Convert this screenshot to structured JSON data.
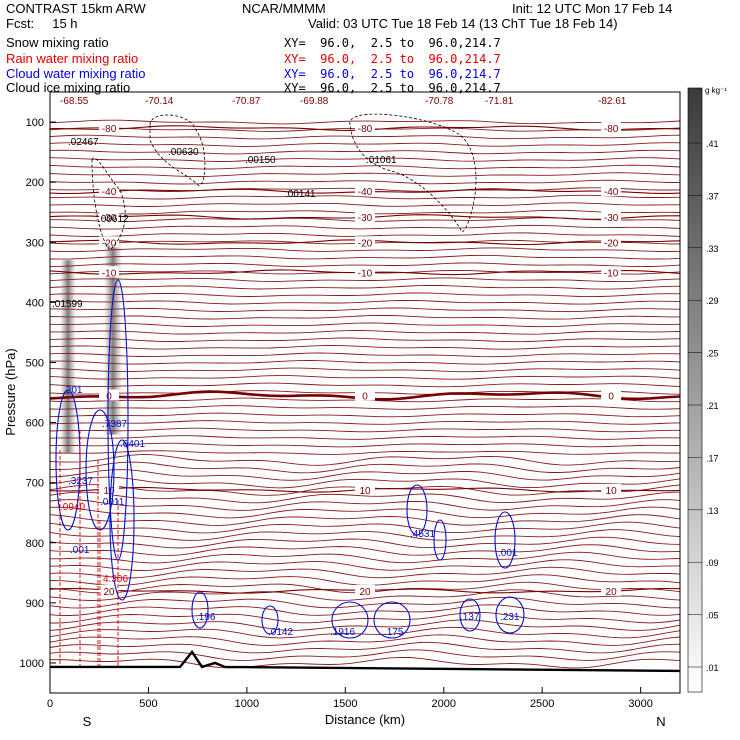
{
  "header": {
    "title": "CONTRAST 15km ARW",
    "forecast": "Fcst:     15 h",
    "center": "NCAR/MMMM",
    "init": "Init: 12 UTC Mon 17 Feb 14",
    "valid": "Valid: 03 UTC Tue 18 Feb 14 (13 ChT Tue 18 Feb 14)",
    "fields": [
      {
        "label": "Snow mixing ratio",
        "xy": "XY=  96.0,  2.5 to  96.0,214.7",
        "color": "#000000"
      },
      {
        "label": "Rain water mixing ratio",
        "xy": "XY=  96.0,  2.5 to  96.0,214.7",
        "color": "#e00000"
      },
      {
        "label": "Cloud water mixing ratio",
        "xy": "XY=  96.0,  2.5 to  96.0,214.7",
        "color": "#0000e0"
      },
      {
        "label": "Cloud ice mixing ratio",
        "xy": "XY=  96.0,  2.5 to  96.0,214.7",
        "color": "#000000"
      }
    ]
  },
  "chart_data": {
    "type": "cross-section",
    "xlabel": "Distance (km)",
    "ylabel": "Pressure (hPa)",
    "xlim": [
      0,
      3200
    ],
    "ylim": [
      1050,
      50
    ],
    "x_ticks": [
      0,
      500,
      1000,
      1500,
      2000,
      2500,
      3000
    ],
    "y_ticks": [
      100,
      200,
      300,
      400,
      500,
      600,
      700,
      800,
      900,
      1000
    ],
    "end_labels": {
      "left": "S",
      "right": "N"
    },
    "colorbar": {
      "unit": "g kg⁻¹",
      "ticks": [
        ".41",
        ".37",
        ".33",
        ".29",
        ".25",
        ".21",
        ".17",
        ".13",
        ".09",
        ".05",
        ".01"
      ]
    },
    "temperature_contours": [
      {
        "value": -80,
        "label": "-80",
        "pressure": 110
      },
      {
        "value": -40,
        "label": "-40",
        "pressure": 215
      },
      {
        "value": -30,
        "label": "-30",
        "pressure": 258
      },
      {
        "value": -20,
        "label": "-20",
        "pressure": 300
      },
      {
        "value": -10,
        "label": "-10",
        "pressure": 350
      },
      {
        "value": 0,
        "label": "0",
        "pressure": 555
      },
      {
        "value": 10,
        "label": "10",
        "pressure": 712
      },
      {
        "value": 20,
        "label": "20",
        "pressure": 880
      }
    ],
    "top_values": [
      "-68.55",
      "-70.14",
      "-70.87",
      "-69.88",
      "-70.78",
      "-71.81",
      "-82.61"
    ],
    "ice_maxima": [
      ".02467",
      ".00630",
      ".00150",
      ".00141",
      ".01061",
      ".00612",
      ".01599"
    ],
    "cloud_water_maxima": [
      ".201",
      ".7387",
      ".6401",
      ".3237",
      ".0011",
      ".196",
      ".0142",
      ".1916",
      ".175",
      ".137",
      ".231",
      ".001",
      ".4531",
      ".001"
    ],
    "rain_maxima": [
      ".0940",
      "4.306"
    ],
    "terrain_surface_pressure": 1005
  }
}
